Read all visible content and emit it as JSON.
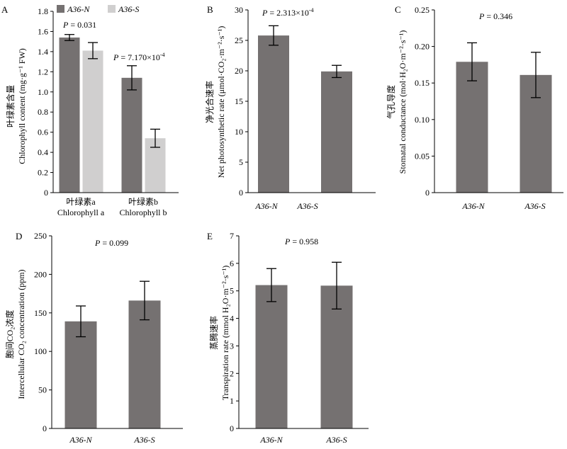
{
  "colors": {
    "N": "#757171",
    "S": "#d0cfcf"
  },
  "legend": {
    "n_label": "A36-N",
    "s_label": "A36-S"
  },
  "chart_data": [
    {
      "id": "A",
      "panel_label": "A",
      "type": "bar",
      "ylabel_cn": "叶绿素含量",
      "ylabel_en": "Chlorophyll content (mg·g⁻¹ FW)",
      "ylim": [
        0,
        1.8
      ],
      "yticks": [
        "0",
        "0.2",
        "0.4",
        "0.6",
        "0.8",
        "1.0",
        "1.2",
        "1.4",
        "1.6",
        "1.8"
      ],
      "categories": [
        {
          "cn": "叶绿素a",
          "en": "Chlorophyll a",
          "p_label": "P = 0.031"
        },
        {
          "cn": "叶绿素b",
          "en": "Chlorophyll b",
          "p_label": "P = 7.170×10⁻⁴"
        }
      ],
      "series": [
        {
          "name": "A36-N",
          "values": [
            1.54,
            1.14
          ],
          "errors": [
            0.03,
            0.12
          ]
        },
        {
          "name": "A36-S",
          "values": [
            1.41,
            0.54
          ],
          "errors": [
            0.08,
            0.09
          ]
        }
      ],
      "legend_position": "top"
    },
    {
      "id": "B",
      "panel_label": "B",
      "type": "bar",
      "ylabel_cn": "净光合速率",
      "ylabel_en": "Net photosynthetic rate (μmol·CO₂·m⁻²·s⁻¹)",
      "ylim": [
        0,
        30
      ],
      "yticks": [
        "0",
        "5",
        "10",
        "15",
        "20",
        "25",
        "30"
      ],
      "p_label": "P = 2.313×10⁻⁴",
      "categories": [
        "A36-N",
        "A36-S"
      ],
      "values": [
        25.8,
        19.9
      ],
      "errors": [
        1.6,
        1.0
      ],
      "bars_present": [
        true,
        true
      ]
    },
    {
      "id": "C",
      "panel_label": "C",
      "type": "bar",
      "ylabel_cn": "气孔导度",
      "ylabel_en": "Stomatal conductance (mol·H₂O·m⁻²·s⁻¹)",
      "ylim": [
        0,
        0.25
      ],
      "yticks": [
        "0",
        "0.05",
        "0.10",
        "0.15",
        "0.20",
        "0.25"
      ],
      "p_label": "P = 0.346",
      "categories": [
        "A36-N",
        "A36-S"
      ],
      "values": [
        0.179,
        0.161
      ],
      "errors": [
        0.026,
        0.031
      ]
    },
    {
      "id": "D",
      "panel_label": "D",
      "type": "bar",
      "ylabel_cn": "胞间CO₂浓度",
      "ylabel_en": "Intercellular CO₂ concentration (ppm)",
      "ylim": [
        0,
        250
      ],
      "yticks": [
        "0",
        "50",
        "100",
        "150",
        "200",
        "250"
      ],
      "p_label": "P = 0.099",
      "categories": [
        "A36-N",
        "A36-S"
      ],
      "values": [
        139,
        166
      ],
      "errors": [
        20,
        25
      ]
    },
    {
      "id": "E",
      "panel_label": "E",
      "type": "bar",
      "ylabel_cn": "蒸腾速率",
      "ylabel_en": "Transpiration rate (mmol H₂O·m⁻²·s⁻¹)",
      "ylim": [
        0,
        7
      ],
      "yticks": [
        "0",
        "1",
        "2",
        "3",
        "4",
        "5",
        "6",
        "7"
      ],
      "p_label": "P = 0.958",
      "categories": [
        "A36-N",
        "A36-S"
      ],
      "values": [
        5.21,
        5.19
      ],
      "errors": [
        0.6,
        0.85
      ]
    }
  ]
}
